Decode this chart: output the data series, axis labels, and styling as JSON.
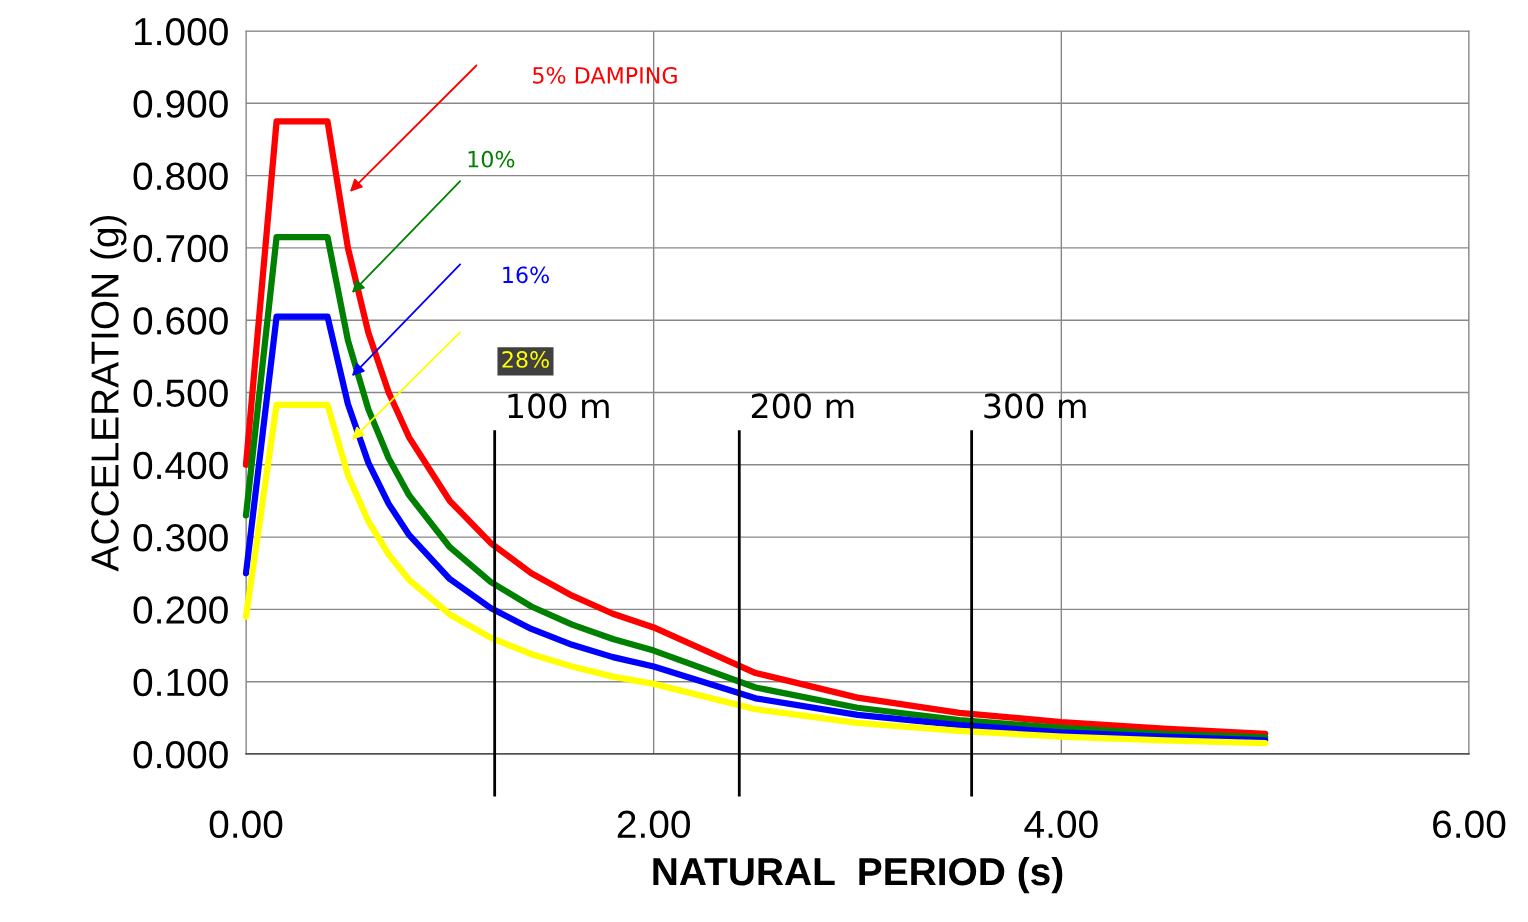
{
  "chart_data": {
    "type": "line",
    "xlabel": "NATURAL  PERIOD (s)",
    "ylabel": "ACCELERATION (g)",
    "x": [
      0,
      0.15,
      0.4,
      0.5,
      0.6,
      0.7,
      0.8,
      1.0,
      1.2,
      1.4,
      1.6,
      1.8,
      2.0,
      2.5,
      3.0,
      3.5,
      4.0,
      4.5,
      5.0
    ],
    "series": [
      {
        "name": "5% DAMPING",
        "color": "#ff0000",
        "values": [
          0.4,
          0.875,
          0.875,
          0.7,
          0.583,
          0.5,
          0.438,
          0.35,
          0.292,
          0.25,
          0.219,
          0.194,
          0.175,
          0.112,
          0.078,
          0.057,
          0.044,
          0.035,
          0.028
        ]
      },
      {
        "name": "10%",
        "color": "#008000",
        "values": [
          0.33,
          0.715,
          0.715,
          0.572,
          0.477,
          0.409,
          0.358,
          0.286,
          0.238,
          0.204,
          0.179,
          0.159,
          0.143,
          0.092,
          0.064,
          0.047,
          0.036,
          0.028,
          0.023
        ]
      },
      {
        "name": "16%",
        "color": "#0000ff",
        "values": [
          0.25,
          0.605,
          0.605,
          0.484,
          0.403,
          0.346,
          0.303,
          0.242,
          0.202,
          0.173,
          0.151,
          0.134,
          0.121,
          0.077,
          0.054,
          0.04,
          0.03,
          0.024,
          0.019
        ]
      },
      {
        "name": "28%",
        "color": "#ffff00",
        "values": [
          0.19,
          0.483,
          0.483,
          0.386,
          0.322,
          0.276,
          0.241,
          0.193,
          0.161,
          0.138,
          0.121,
          0.107,
          0.097,
          0.062,
          0.043,
          0.032,
          0.024,
          0.019,
          0.015
        ]
      }
    ],
    "xlim": [
      0,
      6
    ],
    "xticks": [
      {
        "value": 0,
        "label": "0.00"
      },
      {
        "value": 2,
        "label": "2.00"
      },
      {
        "value": 4,
        "label": "4.00"
      },
      {
        "value": 6,
        "label": "6.00"
      }
    ],
    "ylim": [
      0,
      1
    ],
    "yticks": [
      {
        "value": 0,
        "label": "0.000"
      },
      {
        "value": 0.1,
        "label": "0.100"
      },
      {
        "value": 0.2,
        "label": "0.200"
      },
      {
        "value": 0.3,
        "label": "0.300"
      },
      {
        "value": 0.4,
        "label": "0.400"
      },
      {
        "value": 0.5,
        "label": "0.500"
      },
      {
        "value": 0.6,
        "label": "0.600"
      },
      {
        "value": 0.7,
        "label": "0.700"
      },
      {
        "value": 0.8,
        "label": "0.800"
      },
      {
        "value": 0.9,
        "label": "0.900"
      },
      {
        "value": 1.0,
        "label": "1.000"
      }
    ],
    "ref_lines": [
      {
        "axis": "x",
        "value": 1.22,
        "label": "100 m",
        "color": "#000000"
      },
      {
        "axis": "x",
        "value": 2.42,
        "label": "200 m",
        "color": "#000000"
      },
      {
        "axis": "x",
        "value": 3.56,
        "label": "300 m",
        "color": "#000000"
      }
    ],
    "grid": true,
    "legend": false,
    "marker": "none",
    "line_style": "solid"
  }
}
